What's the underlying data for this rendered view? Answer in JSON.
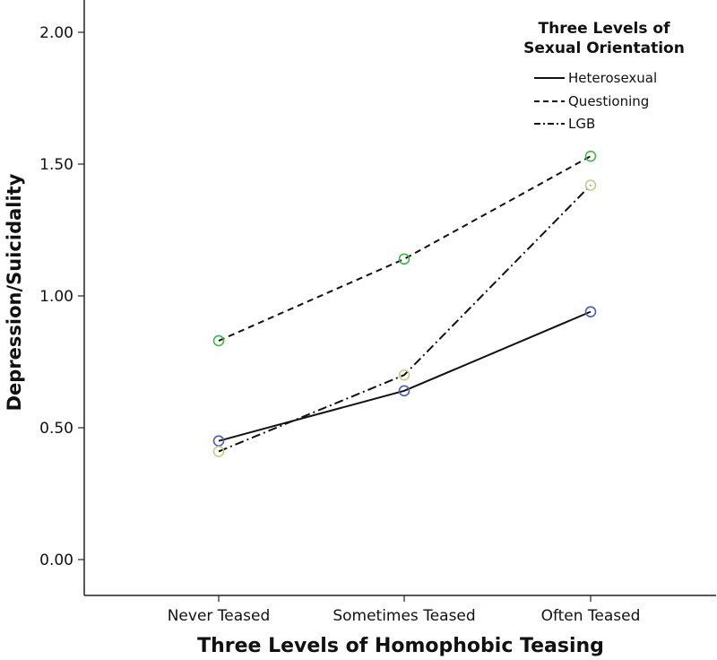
{
  "chart_data": {
    "type": "line",
    "xlabel": "Three Levels of Homophobic Teasing",
    "ylabel": "Depression/Suicidality",
    "categories": [
      "Never Teased",
      "Sometimes Teased",
      "Often Teased"
    ],
    "ylim": [
      0,
      2
    ],
    "yticks": [
      0,
      0.5,
      1,
      1.5,
      2
    ],
    "ytick_labels": [
      "0.00",
      "0.50",
      "1.00",
      "1.50",
      "2.00"
    ],
    "grid": false,
    "legend": {
      "title_lines": [
        "Three Levels of",
        "Sexual Orientation"
      ],
      "position": "top-right"
    },
    "series": [
      {
        "name": "Heterosexual",
        "values": [
          0.45,
          0.64,
          0.94
        ],
        "dash": "solid",
        "marker_color": "#4a5fa8"
      },
      {
        "name": "Questioning",
        "values": [
          0.83,
          1.14,
          1.53
        ],
        "dash": "dashed",
        "marker_color": "#48b04a"
      },
      {
        "name": "LGB",
        "values": [
          0.41,
          0.7,
          1.42
        ],
        "dash": "dashdot",
        "marker_color": "#c8c98a"
      }
    ]
  }
}
